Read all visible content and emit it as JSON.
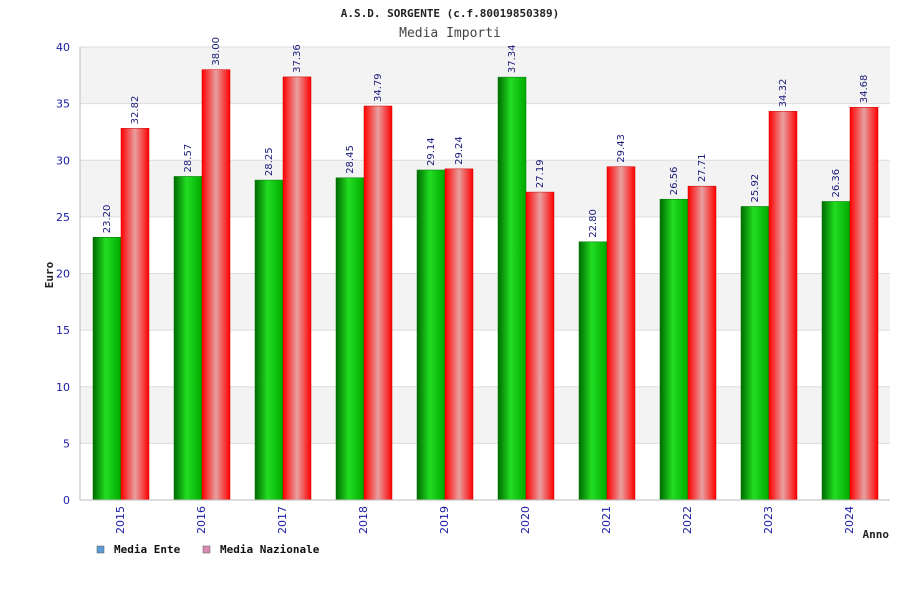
{
  "chart_data": {
    "type": "bar",
    "title": "A.S.D. SORGENTE (c.f.80019850389)",
    "subtitle": "Media Importi",
    "xlabel": "Anno",
    "ylabel": "Euro",
    "ylim": [
      0,
      40
    ],
    "yticks": [
      0,
      5,
      10,
      15,
      20,
      25,
      30,
      35,
      40
    ],
    "grid": true,
    "legend_position": "bottom-left",
    "categories": [
      "2015",
      "2016",
      "2017",
      "2018",
      "2019",
      "2020",
      "2021",
      "2022",
      "2023",
      "2024"
    ],
    "series": [
      {
        "name": "Media Ente",
        "values": [
          23.2,
          28.57,
          28.25,
          28.45,
          29.14,
          37.34,
          22.8,
          26.56,
          25.92,
          26.36
        ],
        "labels": [
          "23.20",
          "28.57",
          "28.25",
          "28.45",
          "29.14",
          "37.34",
          "22.80",
          "26.56",
          "25.92",
          "26.36"
        ],
        "color": "#00aa00",
        "legend_color": "#5b9bd5"
      },
      {
        "name": "Media Nazionale",
        "values": [
          32.82,
          38.0,
          37.36,
          34.79,
          29.24,
          27.19,
          29.43,
          27.71,
          34.32,
          34.68
        ],
        "labels": [
          "32.82",
          "38.00",
          "37.36",
          "34.79",
          "29.24",
          "27.19",
          "29.43",
          "27.71",
          "34.32",
          "34.68"
        ],
        "color": "#ee0000",
        "legend_color": "#d98cb3"
      }
    ]
  }
}
